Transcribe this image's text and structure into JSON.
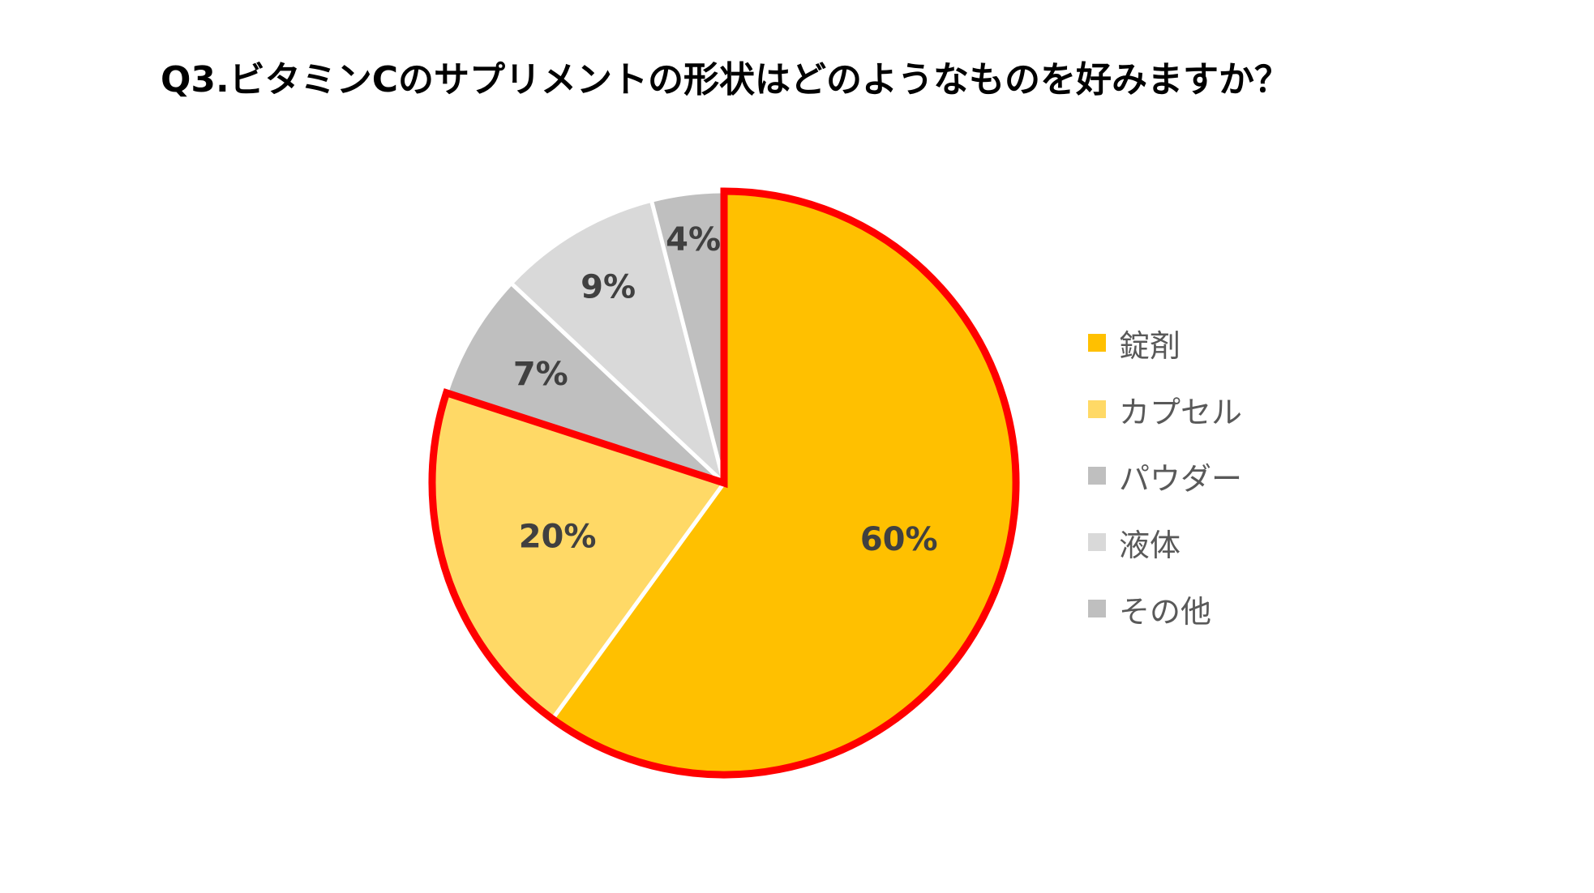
{
  "chart_data": {
    "type": "pie",
    "title": "Q3.ビタミンCのサプリメントの形状はどのようなものを好みますか？",
    "slices": [
      {
        "label": "錠剤",
        "value": 60,
        "display": "60%",
        "color": "#FFC000",
        "highlighted": true
      },
      {
        "label": "カプセル",
        "value": 20,
        "display": "20%",
        "color": "#FFD966",
        "highlighted": true
      },
      {
        "label": "パウダー",
        "value": 7,
        "display": "7%",
        "color": "#BFBFBF",
        "highlighted": false
      },
      {
        "label": "液体",
        "value": 9,
        "display": "9%",
        "color": "#D9D9D9",
        "highlighted": false
      },
      {
        "label": "その他",
        "value": 4,
        "display": "4%",
        "color": "#BFBFBF",
        "highlighted": false
      }
    ],
    "start_angle_deg": 0,
    "direction": "clockwise",
    "highlight_color": "#FF0000",
    "legend_position": "right"
  }
}
